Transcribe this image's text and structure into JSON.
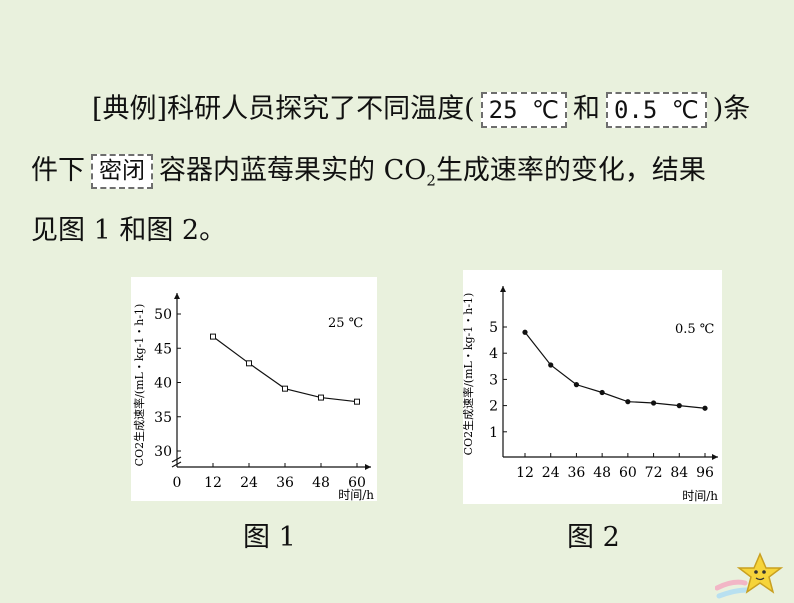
{
  "text": {
    "prefix": "[典例]",
    "t1": "科研人员探究了不同温度(",
    "temp1": "25 ℃",
    "and": "和",
    "temp2": "0.5 ℃",
    "t2": ")条",
    "t3": "件下",
    "sealed": "密闭",
    "t4": "容器内蓝莓果实的 CO",
    "t4sub": "2",
    "t5": "生成速率的变化，结果",
    "t6": "见图 1 和图 2。"
  },
  "captions": {
    "fig1": "图 1",
    "fig2": "图 2"
  },
  "chart_data": [
    {
      "type": "line",
      "annotation": "25 ℃",
      "ylabel": "CO2生成速率/(mL・kg-1・h-1)",
      "xlabel": "时间/h",
      "x": [
        12,
        24,
        36,
        48,
        60
      ],
      "y": [
        46.7,
        42.8,
        39.1,
        37.8,
        37.2
      ],
      "xticks": [
        "0",
        "12",
        "24",
        "36",
        "48",
        "60"
      ],
      "yticks": [
        "30",
        "35",
        "40",
        "45",
        "50"
      ],
      "xlim": [
        0,
        60
      ],
      "ylim": [
        30,
        50
      ],
      "axis_break": true,
      "marker": "open-square",
      "grid": false
    },
    {
      "type": "line",
      "annotation": "0.5 ℃",
      "ylabel": "CO2生成速率/(mL・kg-1・h-1)",
      "xlabel": "时间/h",
      "x": [
        12,
        24,
        36,
        48,
        60,
        72,
        84,
        96
      ],
      "y": [
        4.8,
        3.55,
        2.8,
        2.5,
        2.15,
        2.1,
        2.0,
        1.9
      ],
      "xticks": [
        "12",
        "24",
        "36",
        "48",
        "60",
        "72",
        "84",
        "96"
      ],
      "yticks": [
        "1",
        "2",
        "3",
        "4",
        "5"
      ],
      "xlim": [
        12,
        96
      ],
      "ylim": [
        0,
        5
      ],
      "marker": "filled-circle",
      "grid": false
    }
  ]
}
